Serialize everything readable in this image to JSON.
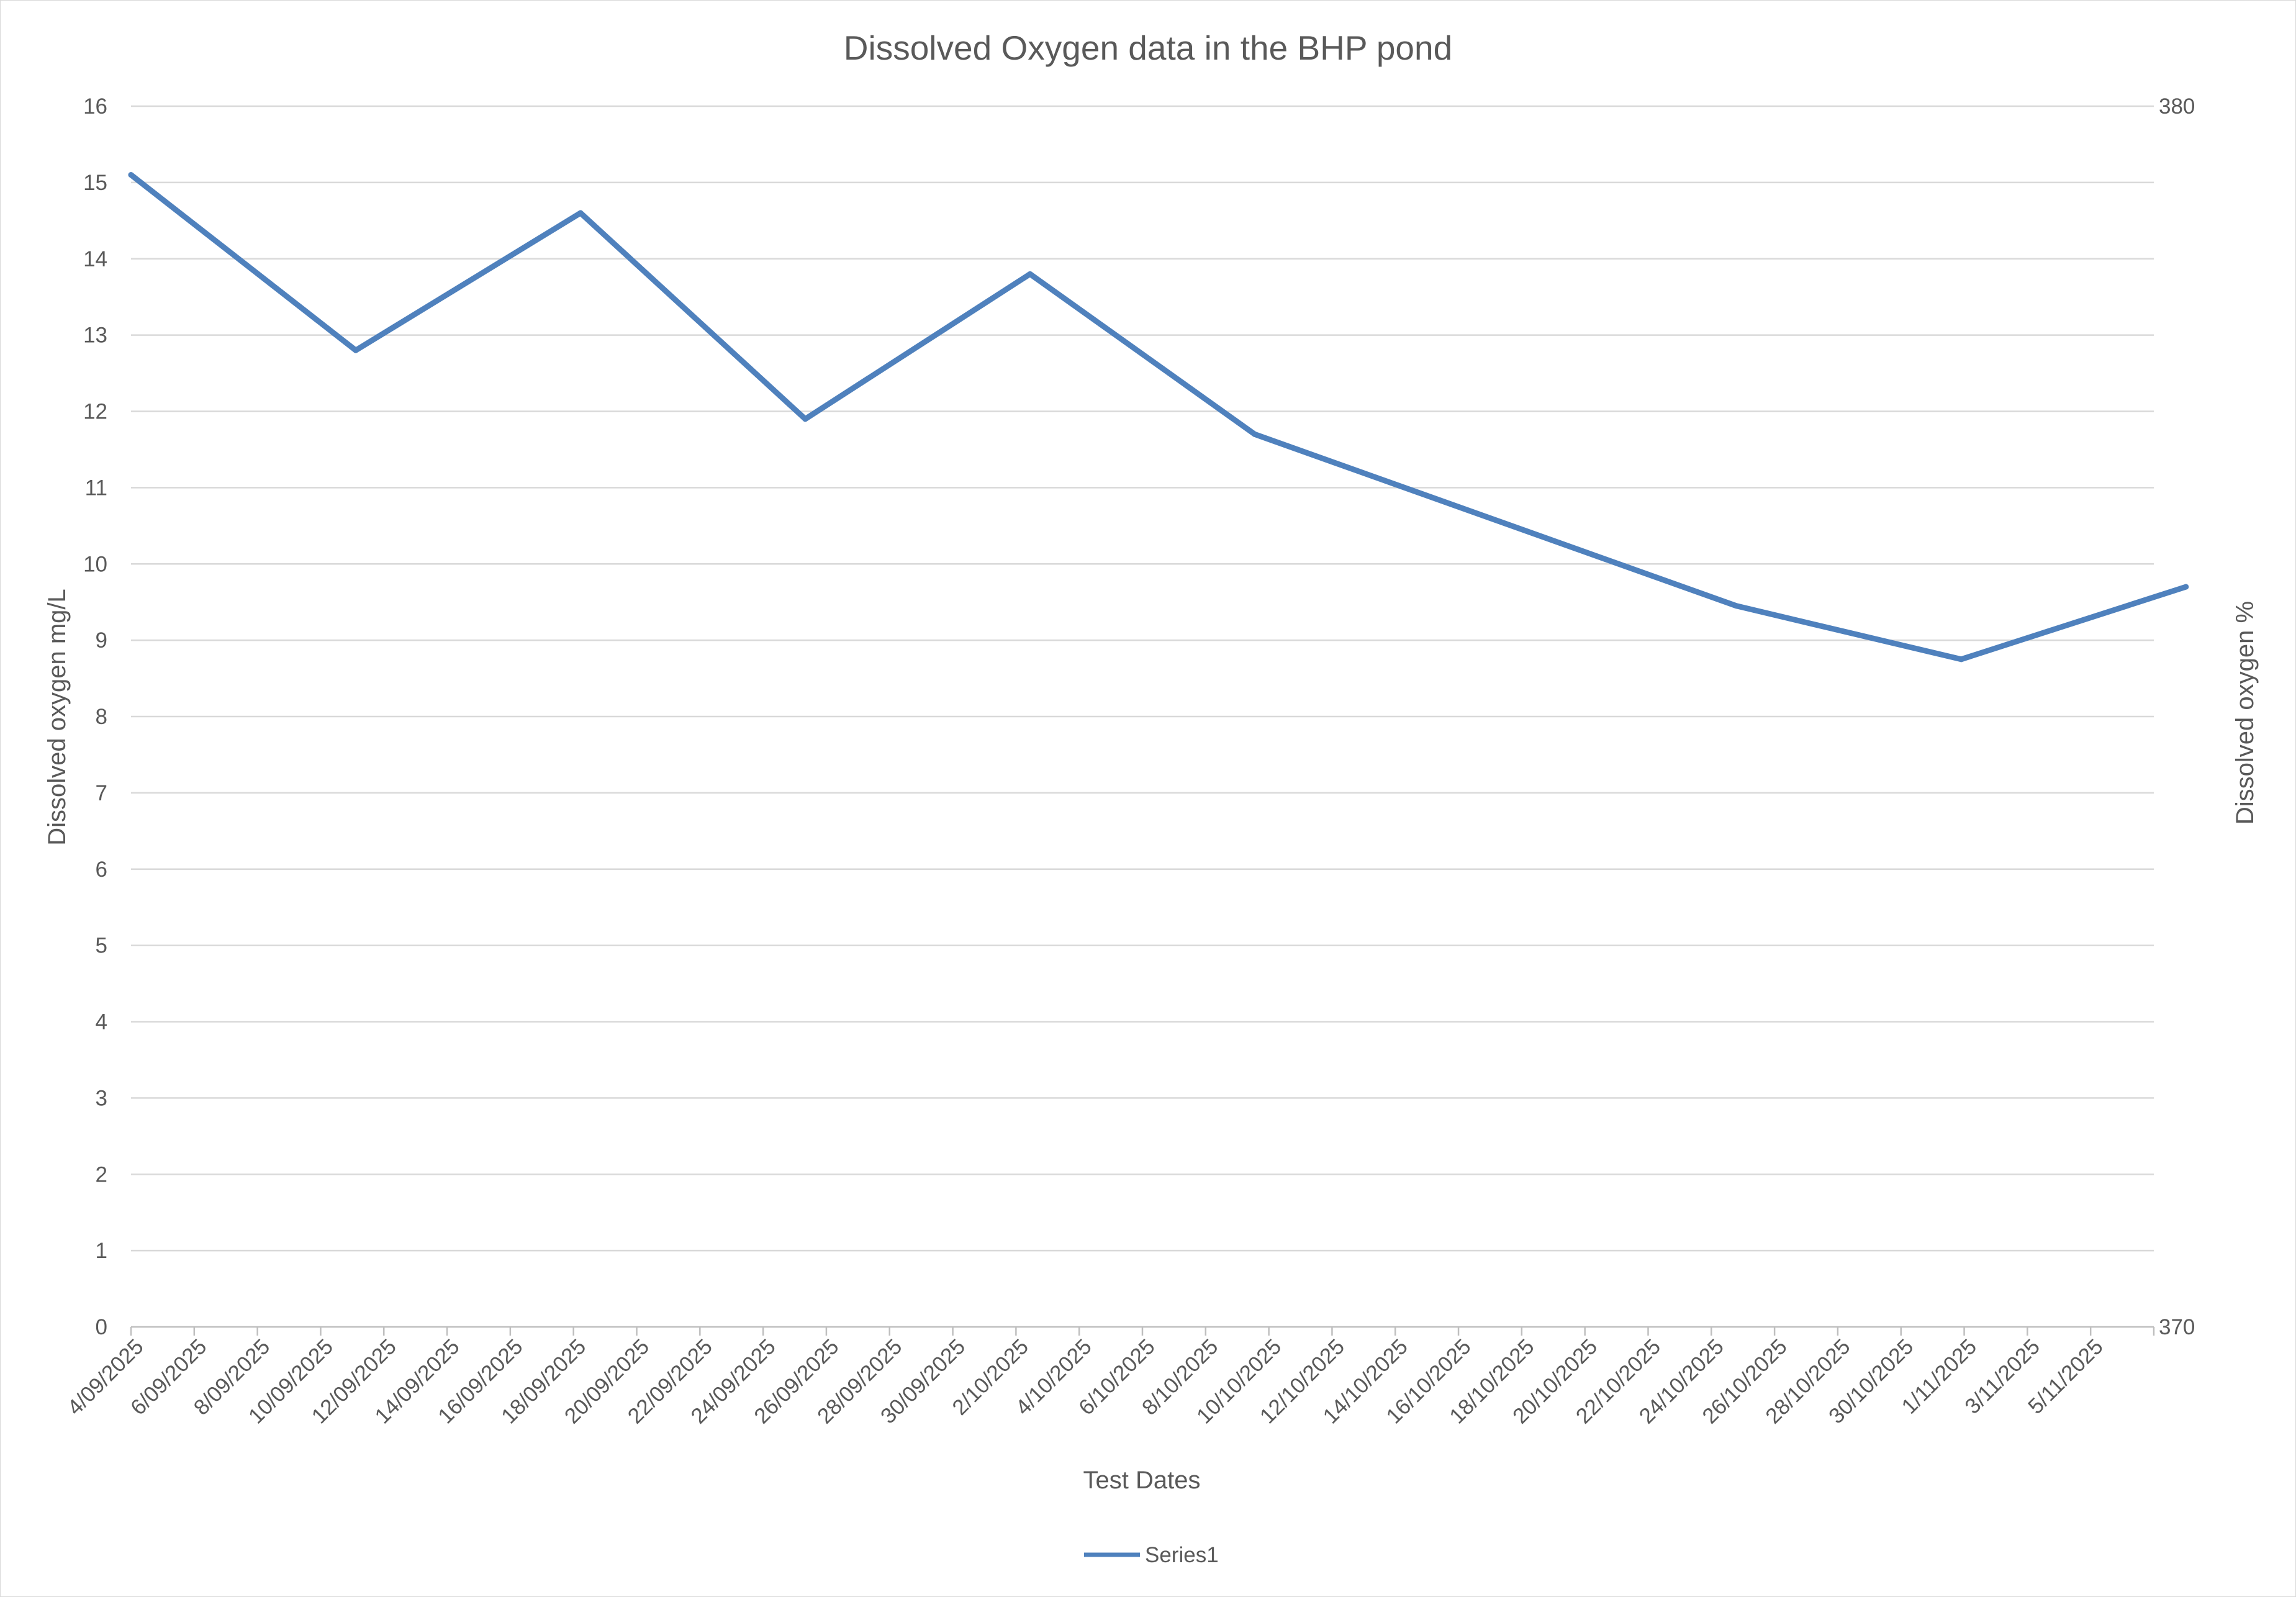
{
  "chart_data": {
    "type": "line",
    "title": "Dissolved Oxygen data in the BHP pond",
    "xlabel": "Test Dates",
    "ylabel": "Dissolved oxygen mg/L",
    "y2label": "Dissolved oxygen %",
    "ylim": [
      0,
      16
    ],
    "y2lim": [
      370,
      380
    ],
    "y2_ticks": [
      380,
      370
    ],
    "grid": true,
    "legend_position": "bottom",
    "x_tick_labels": [
      "4/09/2025",
      "6/09/2025",
      "8/09/2025",
      "10/09/2025",
      "12/09/2025",
      "14/09/2025",
      "16/09/2025",
      "18/09/2025",
      "20/09/2025",
      "22/09/2025",
      "24/09/2025",
      "26/09/2025",
      "28/09/2025",
      "30/09/2025",
      "2/10/2025",
      "4/10/2025",
      "6/10/2025",
      "8/10/2025",
      "10/10/2025",
      "12/10/2025",
      "14/10/2025",
      "16/10/2025",
      "18/10/2025",
      "20/10/2025",
      "22/10/2025",
      "24/10/2025",
      "26/10/2025",
      "28/10/2025",
      "30/10/2025",
      "1/11/2025",
      "3/11/2025",
      "5/11/2025"
    ],
    "x_range": [
      "2025-09-04",
      "2025-11-06"
    ],
    "series": [
      {
        "name": "Series1",
        "color": "#4f81bd",
        "x": [
          "2025-09-04",
          "2025-09-11",
          "2025-09-18",
          "2025-09-25",
          "2025-10-02",
          "2025-10-09",
          "2025-10-24",
          "2025-10-31",
          "2025-11-07"
        ],
        "y": [
          15.1,
          12.8,
          14.6,
          11.9,
          13.8,
          11.7,
          9.45,
          8.75,
          9.7
        ]
      }
    ]
  }
}
